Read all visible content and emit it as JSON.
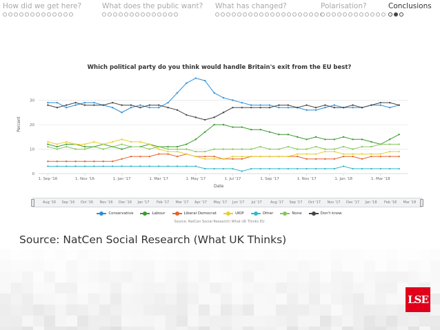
{
  "nav": {
    "sections": [
      {
        "title": "How did we get here?",
        "dots": 13,
        "filled": -1,
        "active": false
      },
      {
        "title": "What does the public want?",
        "dots": 14,
        "filled": -1,
        "active": false
      },
      {
        "title": "What has changed?",
        "dots": 20,
        "filled": -1,
        "active": false
      },
      {
        "title": "Polarisation?",
        "dots": 12,
        "filled": -1,
        "active": false
      },
      {
        "title": "Conclusions",
        "dots": 3,
        "filled": 1,
        "active": true
      }
    ]
  },
  "chart": {
    "title": "Which political party do you think would handle Britain's exit from the EU best?",
    "ylabel": "Percent",
    "xlabel": "Date",
    "credits": "Source: NatCen Social Research/ What UK Thinks EU",
    "navigator_labels": [
      "Aug '16",
      "Sep '16",
      "Oct '16",
      "Nov '16",
      "Dec '16",
      "Jan '17",
      "Feb '17",
      "Mar '17",
      "Apr '17",
      "May '17",
      "Jun '17",
      "Jul '17",
      "Aug '17",
      "Sep '17",
      "Oct '17",
      "Nov '17",
      "Dec '17",
      "Jan '18",
      "Feb '18",
      "Mar '18"
    ]
  },
  "chart_data": {
    "type": "line",
    "title": "Which political party do you think would handle Britain's exit from the EU best?",
    "xlabel": "Date",
    "ylabel": "Percent",
    "ylim": [
      0,
      40
    ],
    "yticks": [
      0,
      10,
      20,
      30
    ],
    "x_ticks": [
      "1. Sep '16",
      "1. Nov '16",
      "1. Jan '17",
      "1. Mar '17",
      "1. May '17",
      "1. Jul '17",
      "1. Sep '17",
      "1. Nov '17",
      "1. Jan '18",
      "1. Mar '18"
    ],
    "x_months": [
      0,
      2,
      4,
      6,
      8,
      10,
      12,
      14,
      16,
      18
    ],
    "xlim": [
      -0.5,
      19.5
    ],
    "grid": true,
    "legend": "bottom",
    "x": [
      0,
      0.5,
      1,
      1.5,
      2,
      2.5,
      3,
      3.5,
      4,
      4.5,
      5,
      5.5,
      6,
      6.5,
      7,
      7.5,
      8,
      8.5,
      9,
      9.5,
      10,
      10.5,
      11,
      11.5,
      12,
      12.5,
      13,
      13.5,
      14,
      14.5,
      15,
      15.5,
      16,
      16.5,
      17,
      17.5,
      18,
      18.5,
      19
    ],
    "series": [
      {
        "name": "Conservative",
        "color": "#2b8ed8",
        "values": [
          29,
          29,
          27,
          28,
          29,
          29,
          28,
          27,
          25,
          27,
          28,
          27,
          27,
          29,
          33,
          37,
          39,
          38,
          33,
          31,
          30,
          29,
          28,
          28,
          28,
          27,
          27,
          27,
          26,
          26,
          27,
          28,
          27,
          27,
          27,
          28,
          28,
          27,
          28
        ]
      },
      {
        "name": "Labour",
        "color": "#3a9a2f",
        "values": [
          12,
          11,
          12,
          12,
          11,
          11,
          12,
          11,
          10,
          11,
          11,
          12,
          11,
          11,
          11,
          12,
          14,
          17,
          20,
          20,
          19,
          19,
          18,
          18,
          17,
          16,
          16,
          15,
          14,
          15,
          14,
          14,
          15,
          14,
          14,
          13,
          12,
          14,
          16
        ]
      },
      {
        "name": "Liberal Democrat",
        "color": "#e5622a",
        "values": [
          5,
          5,
          5,
          5,
          5,
          5,
          5,
          5,
          6,
          7,
          7,
          7,
          8,
          8,
          7,
          8,
          7,
          7,
          7,
          6,
          6,
          6,
          7,
          7,
          7,
          7,
          7,
          7,
          6,
          6,
          6,
          6,
          7,
          7,
          6,
          7,
          7,
          7,
          7
        ]
      },
      {
        "name": "UKIP",
        "color": "#e8d02a",
        "values": [
          13,
          12,
          13,
          12,
          12,
          13,
          12,
          13,
          14,
          13,
          13,
          12,
          10,
          9,
          9,
          8,
          7,
          6,
          6,
          6,
          7,
          7,
          7,
          7,
          7,
          7,
          7,
          8,
          8,
          8,
          9,
          9,
          8,
          8,
          8,
          8,
          8,
          9,
          9
        ]
      },
      {
        "name": "Other",
        "color": "#31b7c9",
        "values": [
          3,
          3,
          3,
          3,
          3,
          3,
          3,
          3,
          3,
          3,
          3,
          3,
          3,
          3,
          3,
          3,
          3,
          2,
          2,
          2,
          2,
          1,
          2,
          2,
          2,
          2,
          2,
          2,
          2,
          2,
          2,
          2,
          3,
          2,
          2,
          2,
          2,
          2,
          2
        ]
      },
      {
        "name": "None",
        "color": "#86c65a",
        "values": [
          11,
          10,
          11,
          10,
          10,
          11,
          10,
          11,
          12,
          11,
          11,
          10,
          11,
          10,
          10,
          10,
          9,
          9,
          10,
          10,
          10,
          10,
          10,
          11,
          10,
          10,
          11,
          10,
          10,
          11,
          10,
          10,
          11,
          10,
          11,
          11,
          12,
          12,
          12
        ]
      },
      {
        "name": "Don't know",
        "color": "#444444",
        "values": [
          28,
          27,
          28,
          29,
          28,
          28,
          28,
          29,
          28,
          28,
          27,
          28,
          28,
          27,
          26,
          24,
          23,
          22,
          23,
          25,
          27,
          27,
          27,
          27,
          27,
          28,
          28,
          27,
          28,
          27,
          28,
          27,
          27,
          28,
          27,
          28,
          29,
          29,
          28
        ]
      }
    ]
  },
  "source": "Source: NatCen Social Research (What UK Thinks)",
  "logo": "LSE",
  "colors": {
    "logo_red": "#e0001b",
    "nav_inactive": "#a9a9a9",
    "nav_active": "#333333"
  }
}
